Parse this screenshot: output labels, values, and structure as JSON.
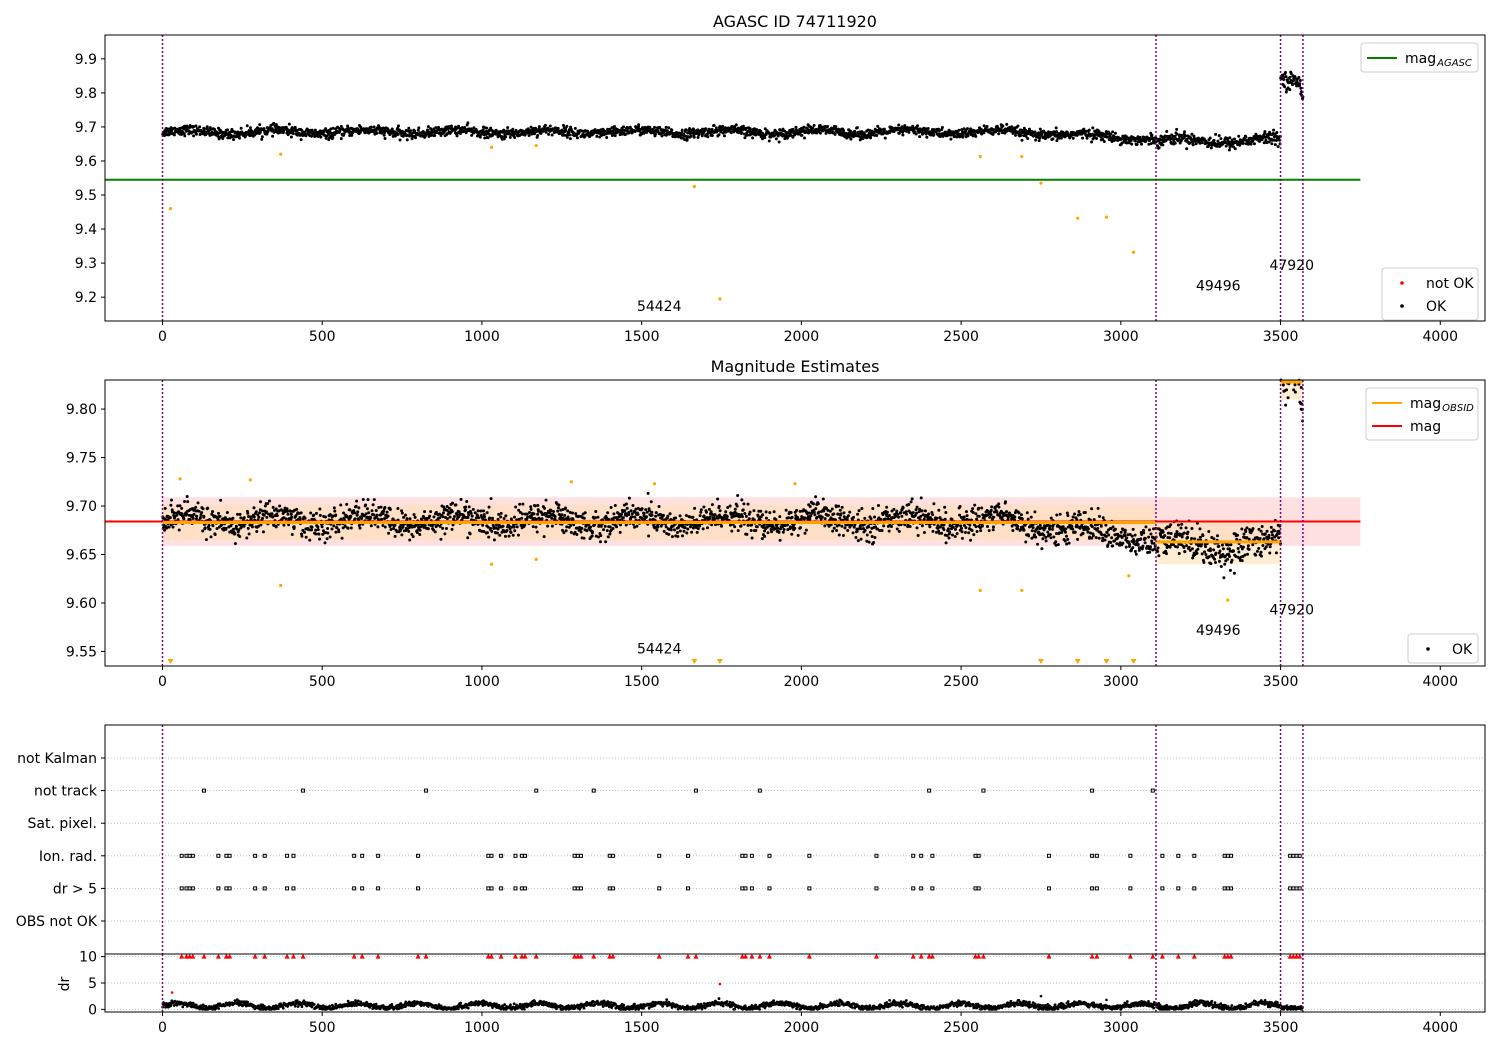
{
  "colors": {
    "ok": "#000000",
    "not_ok": "#ff0000",
    "excluded": "#ffa500",
    "agasc_line": "#008000",
    "obsid_line": "#ffa500",
    "mag_line": "#ff0000",
    "boundary": "#800080",
    "band_red": "#ffcccc",
    "band_orange": "#ffe0b0",
    "grid": "#b0b0b0"
  },
  "chart_data": [
    {
      "type": "scatter",
      "title": "AGASC ID 74711920",
      "xlim": [
        -180,
        4140
      ],
      "ylim": [
        9.13,
        9.97
      ],
      "x_ticks": [
        0,
        500,
        1000,
        1500,
        2000,
        2500,
        3000,
        3500,
        4000
      ],
      "y_ticks": [
        9.2,
        9.3,
        9.4,
        9.5,
        9.6,
        9.7,
        9.8,
        9.9
      ],
      "obsid_boundaries": [
        0,
        3110,
        3500,
        3570
      ],
      "obsid_labels": [
        {
          "text": "54424",
          "x": 1555,
          "y": 9.16
        },
        {
          "text": "49496",
          "x": 3305,
          "y": 9.22
        },
        {
          "text": "47920",
          "x": 3535,
          "y": 9.28
        }
      ],
      "mag_agasc": 9.545,
      "mag_agasc_xrange": [
        -180,
        3750
      ],
      "excluded_points": [
        [
          25,
          9.46
        ],
        [
          1665,
          9.525
        ],
        [
          1745,
          9.195
        ],
        [
          2750,
          9.535
        ],
        [
          2865,
          9.432
        ],
        [
          2955,
          9.435
        ],
        [
          3040,
          9.332
        ],
        [
          370,
          9.62
        ],
        [
          2560,
          9.613
        ],
        [
          2690,
          9.613
        ],
        [
          1030,
          9.64
        ],
        [
          1170,
          9.645
        ]
      ],
      "segments": [
        {
          "x0": 0,
          "x1": 3110,
          "mean": 9.685,
          "noise": 0.012,
          "trend": -0.02
        },
        {
          "x0": 3110,
          "x1": 3500,
          "mean": 9.66,
          "noise": 0.015,
          "trend": 0.0
        },
        {
          "x0": 3500,
          "x1": 3570,
          "mean": 9.835,
          "noise": 0.02,
          "trend": -0.03
        }
      ],
      "legend": [
        {
          "label": "mag",
          "sub": "AGASC",
          "kind": "line",
          "color": "#008000"
        }
      ],
      "legend2": [
        {
          "label": "not OK",
          "kind": "dot",
          "color": "#ff0000"
        },
        {
          "label": "OK",
          "kind": "dot",
          "color": "#000000"
        }
      ]
    },
    {
      "type": "scatter",
      "title": "Magnitude Estimates",
      "xlim": [
        -180,
        4140
      ],
      "ylim": [
        9.535,
        9.83
      ],
      "x_ticks": [
        0,
        500,
        1000,
        1500,
        2000,
        2500,
        3000,
        3500,
        4000
      ],
      "y_ticks": [
        9.55,
        9.6,
        9.65,
        9.7,
        9.75,
        9.8
      ],
      "y_tick_labels": [
        "9.55",
        "9.60",
        "9.65",
        "9.70",
        "9.75",
        "9.80"
      ],
      "obsid_boundaries": [
        0,
        3110,
        3500,
        3570
      ],
      "obsid_labels": [
        {
          "text": "54424",
          "x": 1555,
          "y": 9.548
        },
        {
          "text": "49496",
          "x": 3305,
          "y": 9.567
        },
        {
          "text": "47920",
          "x": 3535,
          "y": 9.588
        }
      ],
      "mag": 9.684,
      "mag_band": [
        9.659,
        9.709
      ],
      "mag_xrange": [
        -180,
        3750
      ],
      "obsid_means": [
        {
          "x0": 0,
          "x1": 3110,
          "mean": 9.683,
          "band": [
            9.665,
            9.701
          ]
        },
        {
          "x0": 3110,
          "x1": 3500,
          "mean": 9.663,
          "band": [
            9.64,
            9.686
          ]
        },
        {
          "x0": 3500,
          "x1": 3570,
          "mean": 9.828,
          "band": [
            9.81,
            9.846
          ]
        }
      ],
      "down_triangles_x": [
        25,
        1665,
        1745,
        2750,
        2865,
        2955,
        3040
      ],
      "excluded_points": [
        [
          370,
          9.618
        ],
        [
          2560,
          9.613
        ],
        [
          2690,
          9.613
        ],
        [
          1030,
          9.64
        ],
        [
          1170,
          9.645
        ],
        [
          3025,
          9.628
        ],
        [
          3335,
          9.603
        ],
        [
          55,
          9.728
        ],
        [
          275,
          9.727
        ],
        [
          1280,
          9.725
        ],
        [
          1540,
          9.723
        ],
        [
          1980,
          9.723
        ]
      ],
      "legend": [
        {
          "label": "mag",
          "sub": "OBSID",
          "kind": "line",
          "color": "#ffa500"
        },
        {
          "label": "mag",
          "sub": "",
          "kind": "line",
          "color": "#ff0000"
        }
      ],
      "legend2": [
        {
          "label": "OK",
          "kind": "dot",
          "color": "#000000"
        }
      ]
    },
    {
      "type": "scatter",
      "title": "",
      "xlim": [
        -180,
        4140
      ],
      "flag_rows": [
        "not Kalman",
        "not track",
        "Sat. pixel.",
        "Ion. rad.",
        "dr > 5",
        "OBS not OK"
      ],
      "flag_events": {
        "not track": [
          130,
          440,
          825,
          1170,
          1350,
          1670,
          1870,
          2400,
          2570,
          2910,
          3100
        ],
        "Ion. rad.": [
          60,
          75,
          85,
          95,
          175,
          200,
          210,
          290,
          320,
          390,
          410,
          600,
          625,
          675,
          800,
          1020,
          1030,
          1060,
          1105,
          1125,
          1135,
          1290,
          1300,
          1310,
          1400,
          1410,
          1555,
          1645,
          1815,
          1825,
          1845,
          1900,
          2025,
          2235,
          2350,
          2375,
          2410,
          2545,
          2555,
          2775,
          2910,
          2925,
          3030,
          3130,
          3180,
          3230,
          3325,
          3335,
          3345,
          3530,
          3540,
          3550,
          3560
        ],
        "dr > 5": [
          60,
          75,
          85,
          95,
          175,
          200,
          210,
          290,
          320,
          390,
          410,
          600,
          625,
          675,
          800,
          1020,
          1030,
          1060,
          1105,
          1125,
          1135,
          1290,
          1300,
          1310,
          1400,
          1410,
          1555,
          1645,
          1815,
          1825,
          1845,
          1900,
          2025,
          2235,
          2350,
          2375,
          2410,
          2545,
          2555,
          2775,
          2910,
          2925,
          3030,
          3130,
          3180,
          3230,
          3325,
          3335,
          3345,
          3530,
          3540,
          3550,
          3560
        ]
      }
    },
    {
      "type": "scatter",
      "title": "",
      "ylabel": "dr",
      "xlim": [
        -180,
        4140
      ],
      "ylim": [
        -0.5,
        10.5
      ],
      "x_ticks": [
        0,
        500,
        1000,
        1500,
        2000,
        2500,
        3000,
        3500,
        4000
      ],
      "y_ticks": [
        0,
        5,
        10
      ],
      "obsid_boundaries": [
        0,
        3110,
        3500,
        3570
      ],
      "dr_mean": 0.7,
      "dr_outliers": [
        [
          30,
          3.2
        ],
        [
          1745,
          4.8
        ],
        [
          2750,
          2.5
        ],
        [
          2955,
          1.8
        ]
      ],
      "dr_capped_x": [
        60,
        75,
        85,
        95,
        130,
        175,
        200,
        210,
        290,
        320,
        390,
        410,
        440,
        600,
        625,
        675,
        800,
        825,
        1020,
        1030,
        1060,
        1105,
        1125,
        1135,
        1170,
        1290,
        1300,
        1310,
        1350,
        1400,
        1410,
        1555,
        1645,
        1670,
        1815,
        1825,
        1845,
        1870,
        1900,
        2025,
        2235,
        2350,
        2375,
        2400,
        2410,
        2545,
        2555,
        2570,
        2775,
        2910,
        2925,
        3030,
        3100,
        3130,
        3180,
        3230,
        3325,
        3335,
        3345,
        3530,
        3540,
        3550,
        3560
      ]
    }
  ]
}
